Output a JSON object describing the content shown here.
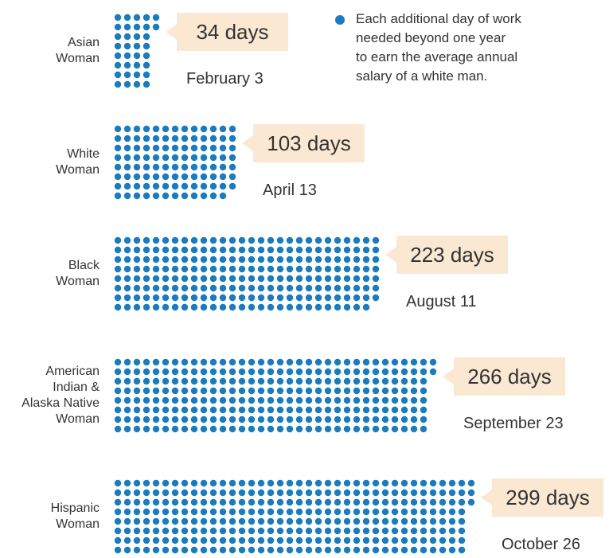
{
  "chart_data": {
    "type": "waffle",
    "legend": "Each additional day of work\nneeded beyond one year\nto earn the average annual\nsalary of a white man.",
    "color": "#1a7bbf",
    "categories": [
      "Asian\nWoman",
      "White\nWoman",
      "Black\nWoman",
      "American\nIndian &\nAlaska Native\nWoman",
      "Hispanic\nWoman"
    ],
    "values": [
      34,
      103,
      223,
      266,
      299
    ],
    "value_labels": [
      "34 days",
      "103 days",
      "223 days",
      "266 days",
      "299 days"
    ],
    "annotations": [
      "February 3",
      "April 13",
      "August 11",
      "September 23",
      "October 26"
    ]
  }
}
